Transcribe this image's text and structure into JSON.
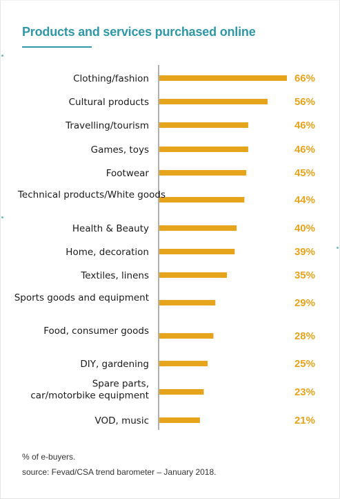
{
  "title": "Products and services purchased online",
  "notes": {
    "unit": "% of e-buyers.",
    "source": "source: Fevad/CSA trend barometer – January 2018."
  },
  "colors": {
    "accent": "#2f97a6",
    "bar": "#e6a31c",
    "value_text": "#e6a31c",
    "axis": "#7a7a7a"
  },
  "chart_data": {
    "type": "bar",
    "orientation": "horizontal",
    "title": "Products and services purchased online",
    "unit": "% of e-buyers",
    "categories": [
      [
        "Clothing/fashion"
      ],
      [
        "Cultural products"
      ],
      [
        "Travelling/tourism"
      ],
      [
        "Games, toys"
      ],
      [
        "Footwear"
      ],
      [
        "Technical products/White goods"
      ],
      [
        "Health & Beauty"
      ],
      [
        "Home, decoration"
      ],
      [
        "Textiles, linens"
      ],
      [
        "Sports goods and equipment"
      ],
      [
        "Food, consumer goods"
      ],
      [
        "DIY, gardening"
      ],
      [
        "Spare parts,",
        "car/motorbike equipment"
      ],
      [
        "VOD, music"
      ]
    ],
    "values": [
      66,
      56,
      46,
      46,
      45,
      44,
      40,
      39,
      35,
      29,
      28,
      25,
      23,
      21
    ],
    "value_labels": [
      "66%",
      "56%",
      "46%",
      "46%",
      "45%",
      "44%",
      "40%",
      "39%",
      "35%",
      "29%",
      "28%",
      "25%",
      "23%",
      "21%"
    ],
    "xlim": [
      0,
      66
    ],
    "grid": false,
    "legend": "none"
  }
}
